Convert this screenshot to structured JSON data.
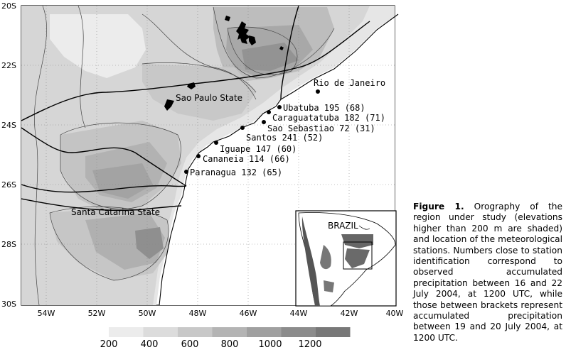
{
  "map": {
    "lat_labels": [
      "20S",
      "22S",
      "24S",
      "26S",
      "28S",
      "30S"
    ],
    "lon_labels": [
      "54W",
      "52W",
      "50W",
      "48W",
      "46W",
      "44W",
      "42W",
      "40W"
    ],
    "state_labels": {
      "sao_paulo": "Sao Paulo State",
      "santa_catarina": "Santa Catarina State"
    },
    "city_label": "Rio de Janeiro",
    "stations": [
      {
        "name": "Ubatuba",
        "total": 195,
        "event": 68,
        "label": "Ubatuba 195 (68)"
      },
      {
        "name": "Caraguatatuba",
        "total": 182,
        "event": 71,
        "label": "Caraguatatuba 182 (71)"
      },
      {
        "name": "Sao Sebastiao",
        "total": 72,
        "event": 31,
        "label": "Sao Sebastiao 72 (31)"
      },
      {
        "name": "Santos",
        "total": 241,
        "event": 52,
        "label": "Santos 241 (52)"
      },
      {
        "name": "Iguape",
        "total": 147,
        "event": 60,
        "label": "Iguape 147 (60)"
      },
      {
        "name": "Cananeia",
        "total": 114,
        "event": 66,
        "label": "Cananeia 114 (66)"
      },
      {
        "name": "Paranagua",
        "total": 132,
        "event": 65,
        "label": "Paranagua 132 (65)"
      }
    ],
    "inset_label": "BRAZIL"
  },
  "colorbar": {
    "labels": [
      "200",
      "400",
      "600",
      "800",
      "1000",
      "1200"
    ],
    "colors": [
      "#ececec",
      "#dcdcdc",
      "#c8c8c8",
      "#b4b4b4",
      "#a0a0a0",
      "#8c8c8c",
      "#787878"
    ]
  },
  "caption": {
    "label": "Figure 1.",
    "text": "Orography of the region under study (elevations higher than 200 m are shaded) and location of the meteorological stations. Numbers close to station identification correspond to observed accumulated precipitation between 16 and 22 July 2004, at 1200 UTC, while those between brackets represent accumulated precipitation between 19 and 20 July 2004, at 1200 UTC."
  }
}
